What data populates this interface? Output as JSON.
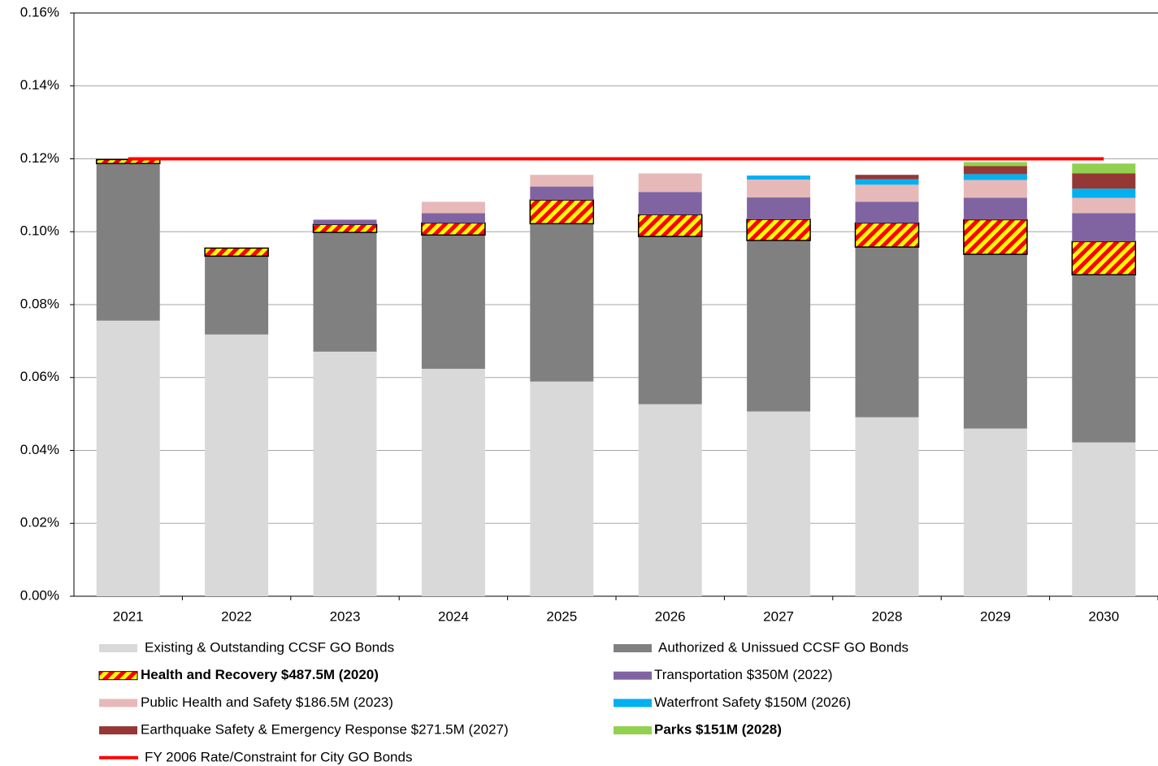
{
  "chart_data": {
    "type": "bar",
    "stacked": true,
    "categories": [
      "2021",
      "2022",
      "2023",
      "2024",
      "2025",
      "2026",
      "2027",
      "2028",
      "2029",
      "2030"
    ],
    "ylim": [
      0,
      0.16
    ],
    "yticks": [
      {
        "value": 0,
        "label": "0.00%"
      },
      {
        "value": 0.02,
        "label": "0.02%"
      },
      {
        "value": 0.04,
        "label": "0.04%"
      },
      {
        "value": 0.06,
        "label": "0.06%"
      },
      {
        "value": 0.08,
        "label": "0.08%"
      },
      {
        "value": 0.1,
        "label": "0.10%"
      },
      {
        "value": 0.12,
        "label": "0.12%"
      },
      {
        "value": 0.14,
        "label": "0.14%"
      },
      {
        "value": 0.16,
        "label": "0.16%"
      }
    ],
    "grid": true,
    "series": [
      {
        "name": "Existing & Outstanding CCSF GO Bonds",
        "color": "#d9d9d9",
        "values": [
          0.0756,
          0.0718,
          0.0671,
          0.0624,
          0.0589,
          0.0527,
          0.0507,
          0.0491,
          0.046,
          0.0422
        ]
      },
      {
        "name": "Authorized & Unissued CCSF GO Bonds",
        "color": "#808080",
        "values": [
          0.0431,
          0.0215,
          0.0327,
          0.0367,
          0.0433,
          0.046,
          0.0469,
          0.0467,
          0.0478,
          0.046
        ]
      },
      {
        "name": "Health and Recovery $487.5M (2020)",
        "color": "#ffff00",
        "hatch_color": "#ff0000",
        "bold": true,
        "values": [
          0.0011,
          0.0022,
          0.0022,
          0.0033,
          0.0065,
          0.006,
          0.0058,
          0.0066,
          0.0095,
          0.0091
        ]
      },
      {
        "name": "Transportation $350M (2022)",
        "color": "#8064a2",
        "values": [
          null,
          null,
          0.0013,
          0.0027,
          0.0037,
          0.0062,
          0.006,
          0.0058,
          0.006,
          0.0078
        ]
      },
      {
        "name": "Public Health and Safety $186.5M (2023)",
        "color": "#e6b9b8",
        "values": [
          null,
          null,
          null,
          0.0031,
          0.0032,
          0.0051,
          0.0049,
          0.0047,
          0.0049,
          0.0042
        ]
      },
      {
        "name": "Waterfront Safety $150M (2026)",
        "color": "#00b0f0",
        "values": [
          null,
          null,
          null,
          null,
          null,
          null,
          0.0011,
          0.0015,
          0.0016,
          0.0025
        ]
      },
      {
        "name": "Earthquake Safety & Emergency Response $271.5M (2027)",
        "color": "#953735",
        "values": [
          null,
          null,
          null,
          null,
          null,
          null,
          null,
          0.0012,
          0.0022,
          0.0042
        ]
      },
      {
        "name": "Parks $151M (2028)",
        "color": "#92d050",
        "bold": true,
        "values": [
          null,
          null,
          null,
          null,
          null,
          null,
          null,
          null,
          0.0011,
          0.0027
        ]
      },
      {
        "name": "FY 2006 Rate/Constraint for City GO Bonds",
        "color": "#ff0000",
        "type": "line",
        "values": [
          0.12,
          0.12,
          0.12,
          0.12,
          0.12,
          0.12,
          0.12,
          0.12,
          0.12,
          0.12
        ]
      }
    ]
  }
}
